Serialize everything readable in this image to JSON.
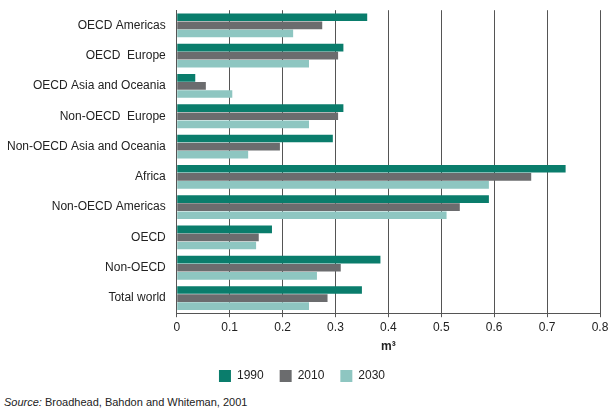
{
  "chart_data": {
    "type": "bar",
    "orientation": "horizontal",
    "categories": [
      "OECD Americas",
      "OECD  Europe",
      "OECD Asia and Oceania",
      "Non-OECD  Europe",
      "Non-OECD Asia and Oceania",
      "Africa",
      "Non-OECD Americas",
      "OECD",
      "Non-OECD",
      "Total world"
    ],
    "series": [
      {
        "name": "1990",
        "color": "#0a7d6c",
        "values": [
          0.36,
          0.315,
          0.035,
          0.315,
          0.295,
          0.735,
          0.59,
          0.18,
          0.385,
          0.35
        ]
      },
      {
        "name": "2010",
        "color": "#6b6c6e",
        "values": [
          0.275,
          0.305,
          0.055,
          0.305,
          0.195,
          0.67,
          0.535,
          0.155,
          0.31,
          0.285
        ]
      },
      {
        "name": "2030",
        "color": "#8ec6c1",
        "values": [
          0.22,
          0.25,
          0.105,
          0.25,
          0.135,
          0.59,
          0.51,
          0.15,
          0.265,
          0.25
        ]
      }
    ],
    "x_label": "m³",
    "xlim": [
      0,
      0.8
    ],
    "xticks": [
      0,
      0.1,
      0.2,
      0.3,
      0.4,
      0.5,
      0.6,
      0.7,
      0.8
    ],
    "grid": true,
    "legend": "bottom",
    "annotations": [
      "Source: Broadhead, Bahdon and Whiteman, 2001"
    ]
  }
}
